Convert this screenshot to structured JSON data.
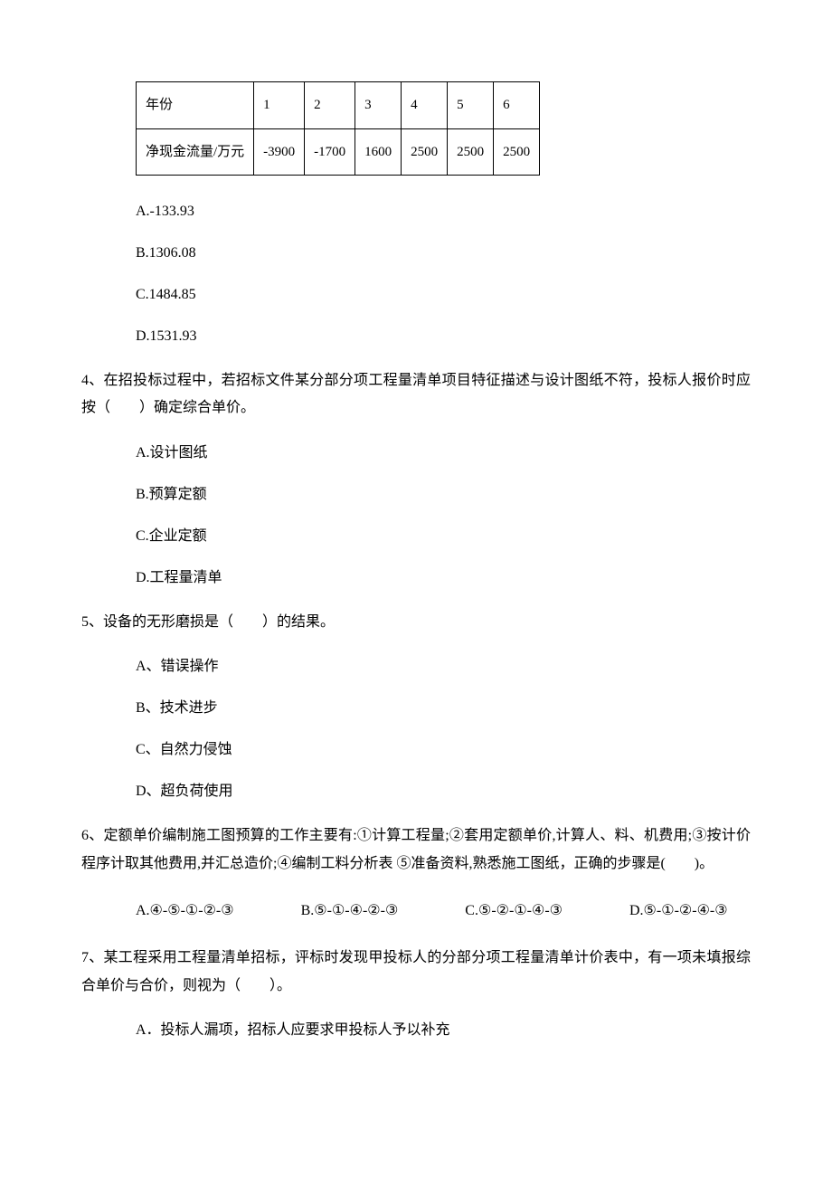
{
  "table": {
    "row1": [
      "年份",
      "1",
      "2",
      "3",
      "4",
      "5",
      "6"
    ],
    "row2": [
      "净现金流量/万元",
      "-3900",
      "-1700",
      "1600",
      "2500",
      "2500",
      "2500"
    ]
  },
  "q3_options": {
    "a": "A.-133.93",
    "b": "B.1306.08",
    "c": "C.1484.85",
    "d": "D.1531.93"
  },
  "q4": {
    "text": "4、在招投标过程中，若招标文件某分部分项工程量清单项目特征描述与设计图纸不符，投标人报价时应按（　　）确定综合单价。",
    "a": "A.设计图纸",
    "b": "B.预算定额",
    "c": "C.企业定额",
    "d": "D.工程量清单"
  },
  "q5": {
    "text": "5、设备的无形磨损是（　　）的结果。",
    "a": "A、错误操作",
    "b": "B、技术进步",
    "c": "C、自然力侵蚀",
    "d": "D、超负荷使用"
  },
  "q6": {
    "text": "6、定额单价编制施工图预算的工作主要有:①计算工程量;②套用定额单价,计算人、料、机费用;③按计价程序计取其他费用,并汇总造价;④编制工料分析表 ⑤准备资料,熟悉施工图纸，正确的步骤是(　　)。",
    "a": "A.④-⑤-①-②-③",
    "b": "B.⑤-①-④-②-③",
    "c": "C.⑤-②-①-④-③",
    "d": "D.⑤-①-②-④-③"
  },
  "q7": {
    "text": "7、某工程采用工程量清单招标，评标时发现甲投标人的分部分项工程量清单计价表中，有一项未填报综合单价与合价，则视为（　　）。",
    "a": "A．投标人漏项，招标人应要求甲投标人予以补充"
  }
}
